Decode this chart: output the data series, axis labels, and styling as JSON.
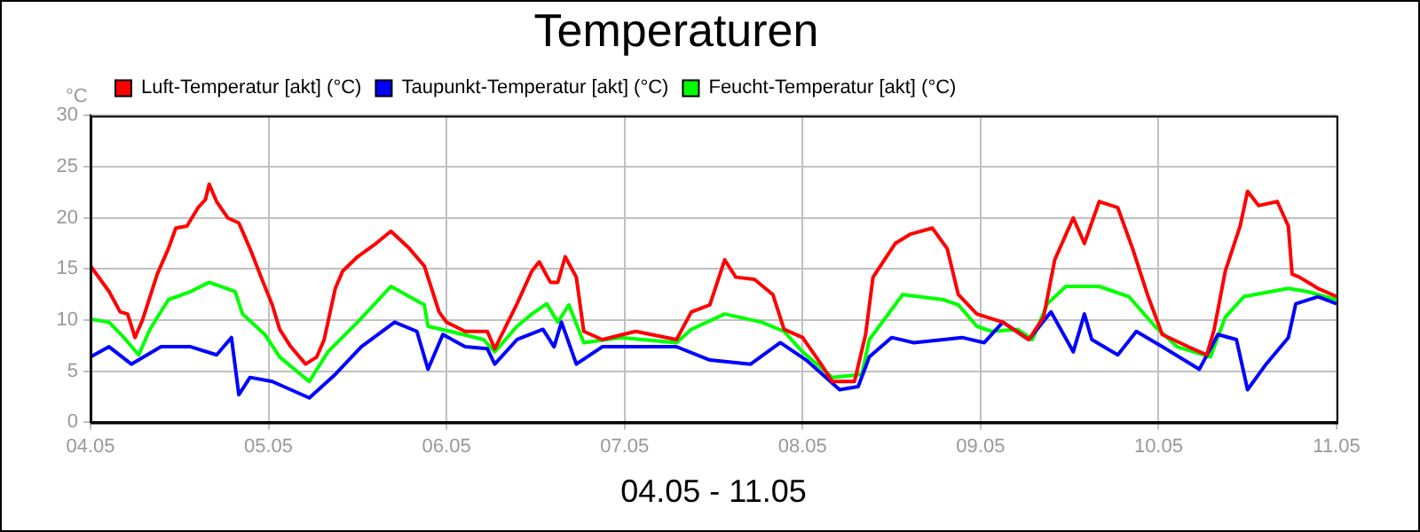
{
  "chart_data": {
    "type": "line",
    "title": "Temperaturen",
    "xlabel": "04.05 - 11.05",
    "ylabel": "°C",
    "legend": "top",
    "grid": true,
    "marker": "none",
    "line_style": "solid",
    "xlim": [
      "--05-04T00:00",
      "--05-11T00:00"
    ],
    "xticks": [
      {
        "value": "--05-04",
        "label": "04.05"
      },
      {
        "value": "--05-05",
        "label": "05.05"
      },
      {
        "value": "--05-06",
        "label": "06.05"
      },
      {
        "value": "--05-07",
        "label": "07.05"
      },
      {
        "value": "--05-08",
        "label": "08.05"
      },
      {
        "value": "--05-09",
        "label": "09.05"
      },
      {
        "value": "--05-10",
        "label": "10.05"
      },
      {
        "value": "--05-11",
        "label": "11.05"
      }
    ],
    "ylim": [
      0,
      30
    ],
    "yticks": [
      0,
      5,
      10,
      15,
      20,
      25,
      30
    ],
    "series": [
      {
        "name": "Luft-Temperatur [akt] (°C)",
        "color": "#ff0000",
        "x": [
          "--05-04T00:00",
          "--05-04T00:30",
          "--05-04T02:30",
          "--05-04T04:00",
          "--05-04T05:00",
          "--05-04T06:00",
          "--05-04T07:00",
          "--05-04T09:00",
          "--05-04T10:30",
          "--05-04T11:30",
          "--05-04T13:00",
          "--05-04T14:30",
          "--05-04T15:30",
          "--05-04T16:00",
          "--05-04T17:00",
          "--05-04T18:30",
          "--05-04T20:00",
          "--05-04T21:30",
          "--05-04T23:00",
          "--05-05T00:30",
          "--05-05T01:30",
          "--05-05T03:00",
          "--05-05T05:00",
          "--05-05T06:30",
          "--05-05T07:30",
          "--05-05T09:00",
          "--05-05T10:00",
          "--05-05T12:00",
          "--05-05T14:30",
          "--05-05T16:30",
          "--05-05T19:00",
          "--05-05T21:00",
          "--05-05T23:00",
          "--05-06T00:00",
          "--05-06T02:30",
          "--05-06T05:30",
          "--05-06T06:30",
          "--05-06T09:30",
          "--05-06T11:30",
          "--05-06T12:30",
          "--05-06T14:00",
          "--05-06T15:00",
          "--05-06T16:00",
          "--05-06T17:30",
          "--05-06T18:30",
          "--05-06T21:00",
          "--05-07T01:30",
          "--05-07T07:00",
          "--05-07T09:00",
          "--05-07T11:30",
          "--05-07T13:30",
          "--05-07T15:00",
          "--05-07T17:30",
          "--05-07T20:00",
          "--05-07T21:30",
          "--05-08T00:00",
          "--05-08T02:30",
          "--05-08T04:00",
          "--05-08T07:00",
          "--05-08T08:30",
          "--05-08T09:30",
          "--05-08T12:30",
          "--05-08T14:30",
          "--05-08T17:30",
          "--05-08T19:30",
          "--05-08T21:00",
          "--05-08T23:30",
          "--05-09T03:00",
          "--05-09T06:30",
          "--05-09T08:30",
          "--05-09T10:00",
          "--05-09T12:30",
          "--05-09T14:00",
          "--05-09T16:00",
          "--05-09T18:30",
          "--05-09T20:30",
          "--05-09T22:30",
          "--05-10T00:30",
          "--05-10T04:00",
          "--05-10T06:30",
          "--05-10T07:30",
          "--05-10T09:00",
          "--05-10T11:00",
          "--05-10T12:00",
          "--05-10T13:30",
          "--05-10T16:00",
          "--05-10T17:30",
          "--05-10T18:00",
          "--05-10T19:00",
          "--05-10T21:30",
          "--05-11T00:00"
        ],
        "values": [
          15.3,
          14.8,
          12.8,
          10.8,
          10.6,
          8.3,
          10,
          14.5,
          17,
          19,
          19.2,
          21,
          21.8,
          23.3,
          21.6,
          20,
          19.5,
          17,
          14.2,
          11.5,
          9.1,
          7.4,
          5.7,
          6.4,
          8.1,
          13.1,
          14.8,
          16.2,
          17.5,
          18.7,
          17,
          15.3,
          10.8,
          9.8,
          8.9,
          8.9,
          7.2,
          11.6,
          14.8,
          15.7,
          13.7,
          13.7,
          16.2,
          14.2,
          8.9,
          8.1,
          8.9,
          8.1,
          10.8,
          11.5,
          15.9,
          14.2,
          14,
          12.5,
          9.1,
          8.3,
          5.7,
          4,
          4,
          8.6,
          14.2,
          17.5,
          18.4,
          19,
          17,
          12.5,
          10.6,
          9.8,
          8.1,
          10.3,
          15.9,
          20,
          17.5,
          21.6,
          21,
          17,
          12.5,
          8.6,
          7.4,
          6.6,
          9.1,
          14.8,
          19.2,
          22.6,
          21.2,
          21.6,
          19.2,
          14.5,
          14.2,
          13.1,
          12.3
        ]
      },
      {
        "name": "Taupunkt-Temperatur [akt] (°C)",
        "color": "#0000ff",
        "x": [
          "--05-04T00:00",
          "--05-04T02:30",
          "--05-04T05:30",
          "--05-04T09:30",
          "--05-04T13:30",
          "--05-04T17:00",
          "--05-04T19:00",
          "--05-04T20:00",
          "--05-04T21:30",
          "--05-05T00:30",
          "--05-05T05:30",
          "--05-05T09:00",
          "--05-05T12:30",
          "--05-05T17:00",
          "--05-05T20:00",
          "--05-05T21:30",
          "--05-05T23:30",
          "--05-06T02:30",
          "--05-06T05:30",
          "--05-06T06:30",
          "--05-06T09:30",
          "--05-06T13:00",
          "--05-06T14:30",
          "--05-06T15:30",
          "--05-06T17:30",
          "--05-06T21:00",
          "--05-07T07:00",
          "--05-07T11:30",
          "--05-07T17:00",
          "--05-07T21:00",
          "--05-08T00:30",
          "--05-08T05:00",
          "--05-08T07:30",
          "--05-08T09:00",
          "--05-08T12:00",
          "--05-08T15:00",
          "--05-08T19:00",
          "--05-08T21:30",
          "--05-09T00:30",
          "--05-09T03:00",
          "--05-09T06:30",
          "--05-09T09:30",
          "--05-09T12:30",
          "--05-09T14:00",
          "--05-09T15:00",
          "--05-09T18:30",
          "--05-09T21:00",
          "--05-10T00:30",
          "--05-10T05:30",
          "--05-10T08:00",
          "--05-10T10:30",
          "--05-10T12:00",
          "--05-10T14:30",
          "--05-10T17:30",
          "--05-10T18:30",
          "--05-10T21:30",
          "--05-11T00:00"
        ],
        "values": [
          6.4,
          7.4,
          5.7,
          7.4,
          7.4,
          6.6,
          8.3,
          2.7,
          4.4,
          4,
          2.4,
          4.7,
          7.4,
          9.8,
          8.9,
          5.2,
          8.6,
          7.4,
          7.2,
          5.7,
          8.1,
          9.1,
          7.4,
          9.8,
          5.7,
          7.4,
          7.4,
          6.1,
          5.7,
          7.8,
          6.1,
          3.2,
          3.5,
          6.4,
          8.3,
          7.8,
          8.1,
          8.3,
          7.8,
          9.8,
          8.1,
          10.8,
          6.9,
          10.6,
          8.1,
          6.6,
          8.9,
          7.4,
          5.2,
          8.6,
          8.1,
          3.2,
          5.7,
          8.3,
          11.6,
          12.3,
          11.6
        ]
      },
      {
        "name": "Feucht-Temperatur [akt] (°C)",
        "color": "#00ff00",
        "x": [
          "--05-04T00:00",
          "--05-04T02:30",
          "--05-04T04:30",
          "--05-04T06:30",
          "--05-04T08:00",
          "--05-04T10:30",
          "--05-04T13:30",
          "--05-04T16:00",
          "--05-04T19:30",
          "--05-04T20:30",
          "--05-04T23:30",
          "--05-05T01:30",
          "--05-05T05:30",
          "--05-05T08:00",
          "--05-05T12:00",
          "--05-05T16:30",
          "--05-05T21:00",
          "--05-05T21:30",
          "--05-06T00:30",
          "--05-06T05:00",
          "--05-06T06:30",
          "--05-06T09:30",
          "--05-06T11:30",
          "--05-06T13:30",
          "--05-06T15:00",
          "--05-06T16:30",
          "--05-06T18:30",
          "--05-06T23:30",
          "--05-07T07:00",
          "--05-07T09:00",
          "--05-07T13:30",
          "--05-07T18:30",
          "--05-07T21:30",
          "--05-08T00:00",
          "--05-08T04:00",
          "--05-08T08:00",
          "--05-08T09:00",
          "--05-08T13:30",
          "--05-08T19:00",
          "--05-08T21:00",
          "--05-08T23:30",
          "--05-09T01:30",
          "--05-09T05:00",
          "--05-09T07:00",
          "--05-09T09:00",
          "--05-09T11:30",
          "--05-09T16:00",
          "--05-09T20:00",
          "--05-09T23:30",
          "--05-10T02:30",
          "--05-10T07:00",
          "--05-10T09:00",
          "--05-10T11:30",
          "--05-10T17:30",
          "--05-10T20:00",
          "--05-11T00:00"
        ],
        "values": [
          10.1,
          9.8,
          8.3,
          6.6,
          9.1,
          12,
          12.8,
          13.7,
          12.8,
          10.6,
          8.6,
          6.4,
          4,
          6.9,
          9.8,
          13.3,
          11.5,
          9.4,
          8.9,
          8.1,
          6.9,
          9.4,
          10.6,
          11.6,
          9.8,
          11.5,
          7.8,
          8.3,
          7.8,
          9.1,
          10.6,
          9.8,
          8.9,
          6.9,
          4.4,
          4.7,
          8.1,
          12.5,
          12,
          11.5,
          9.4,
          8.9,
          9.1,
          8.1,
          11.6,
          13.3,
          13.3,
          12.3,
          9.4,
          7.4,
          6.4,
          10.3,
          12.3,
          13.1,
          12.8,
          12
        ]
      }
    ]
  }
}
